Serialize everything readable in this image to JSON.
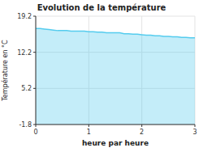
{
  "chart_data": {
    "type": "area",
    "title": "Evolution de la température",
    "x_label": "heure par heure",
    "y_label": "Température en °C",
    "x": [
      0.0,
      0.083,
      0.167,
      0.25,
      0.333,
      0.417,
      0.5,
      0.583,
      0.667,
      0.75,
      0.833,
      0.917,
      1.0,
      1.083,
      1.167,
      1.25,
      1.333,
      1.417,
      1.5,
      1.583,
      1.667,
      1.75,
      1.833,
      1.917,
      2.0,
      2.083,
      2.167,
      2.25,
      2.333,
      2.417,
      2.5,
      2.583,
      2.667,
      2.75,
      2.833,
      2.917,
      3.0
    ],
    "values": [
      16.8,
      16.8,
      16.7,
      16.6,
      16.5,
      16.4,
      16.4,
      16.4,
      16.3,
      16.3,
      16.3,
      16.3,
      16.2,
      16.2,
      16.1,
      16.1,
      16.0,
      16.0,
      16.0,
      16.0,
      15.8,
      15.8,
      15.7,
      15.7,
      15.6,
      15.5,
      15.5,
      15.4,
      15.4,
      15.3,
      15.3,
      15.2,
      15.2,
      15.1,
      15.1,
      15.0,
      15.0
    ],
    "color": "#55ccee",
    "xlim": [
      0,
      3
    ],
    "ylim": [
      -1.8,
      19.2
    ],
    "xticks": [
      0,
      1,
      2,
      3
    ],
    "yticks": [
      -1.8,
      5.2,
      12.2,
      19.2
    ],
    "grid": true
  }
}
